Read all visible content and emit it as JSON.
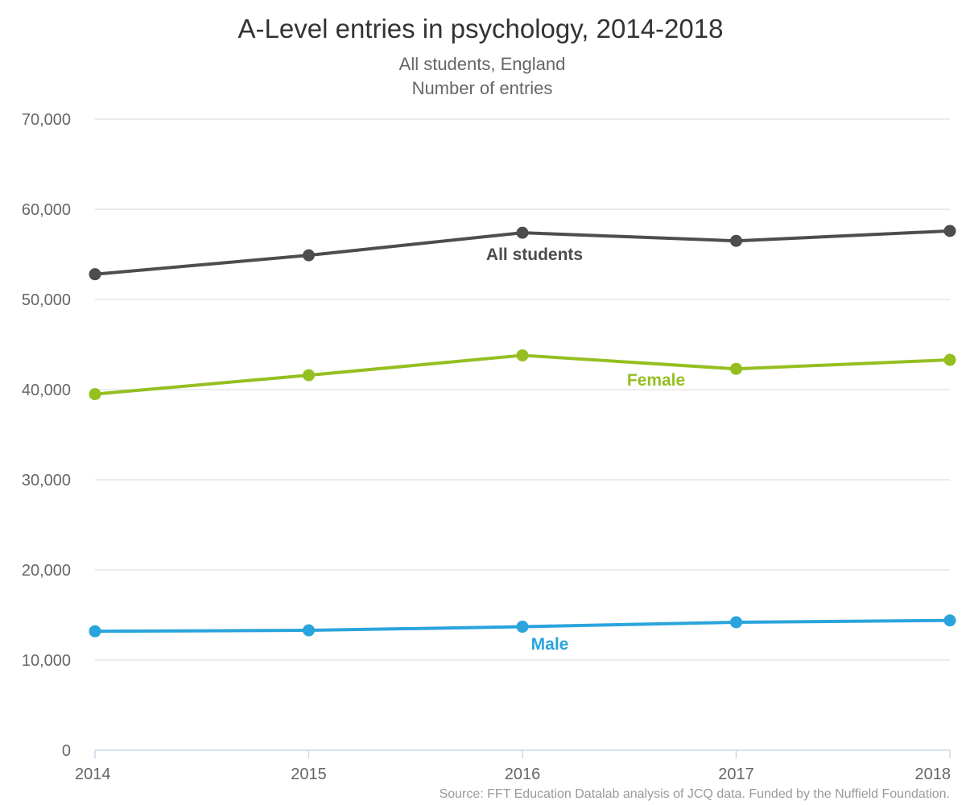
{
  "chart_data": {
    "type": "line",
    "title": "A-Level entries in psychology, 2014-2018",
    "subtitle": [
      "All students, England",
      "Number of entries"
    ],
    "x": [
      2014,
      2015,
      2016,
      2017,
      2018
    ],
    "x_tick_labels": [
      "2014",
      "2015",
      "2016",
      "2017",
      "2018"
    ],
    "ylim": [
      0,
      70000
    ],
    "y_ticks": [
      0,
      10000,
      20000,
      30000,
      40000,
      50000,
      60000,
      70000
    ],
    "y_tick_labels": [
      "0",
      "10,000",
      "20,000",
      "30,000",
      "40,000",
      "50,000",
      "60,000",
      "70,000"
    ],
    "grid": true,
    "legend": "inline labels",
    "series": [
      {
        "name": "All students",
        "color": "#4d4d4d",
        "values": [
          52800,
          54900,
          57400,
          56500,
          57600
        ]
      },
      {
        "name": "Female",
        "color": "#95bf21",
        "values": [
          39500,
          41600,
          43800,
          42300,
          43300
        ]
      },
      {
        "name": "Male",
        "color": "#2aa4dc",
        "values": [
          13200,
          13300,
          13700,
          14200,
          14400
        ]
      }
    ],
    "source": "Source: FFT Education Datalab analysis of JCQ data. Funded by the Nuffield Foundation."
  }
}
